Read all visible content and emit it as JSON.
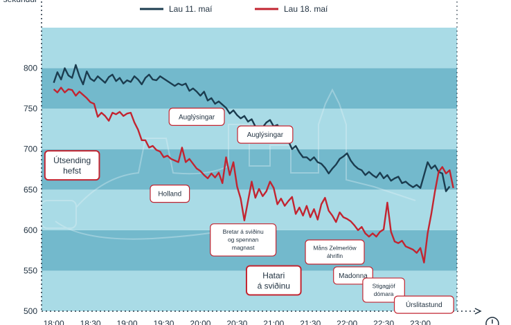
{
  "chart_data": {
    "type": "line",
    "ylabel": "sekúndur",
    "ylim": [
      500,
      850
    ],
    "yticks": [
      "500",
      "550",
      "600",
      "650",
      "700",
      "750",
      "800"
    ],
    "xticks": [
      "18:00",
      "18:30",
      "19:00",
      "19:30",
      "20:00",
      "20:30",
      "21:00",
      "21:30",
      "22:00",
      "22:30",
      "23:00"
    ],
    "xtick_values": [
      0,
      30,
      60,
      90,
      120,
      150,
      180,
      210,
      240,
      270,
      300
    ],
    "xlim": [
      -10,
      330
    ],
    "grid": false,
    "legend_placement": "top",
    "colors": {
      "series1": "#1b3c4f",
      "series2": "#c22430",
      "band_light": "#a9dbe6",
      "band_dark": "#73b9cc",
      "axis": "#1e2f3e"
    },
    "series": [
      {
        "name": "Lau 11. maí",
        "points": [
          [
            0,
            782
          ],
          [
            3,
            795
          ],
          [
            6,
            786
          ],
          [
            9,
            800
          ],
          [
            12,
            791
          ],
          [
            15,
            788
          ],
          [
            18,
            804
          ],
          [
            21,
            790
          ],
          [
            24,
            780
          ],
          [
            27,
            796
          ],
          [
            30,
            787
          ],
          [
            33,
            784
          ],
          [
            36,
            790
          ],
          [
            39,
            786
          ],
          [
            42,
            782
          ],
          [
            45,
            789
          ],
          [
            48,
            792
          ],
          [
            51,
            784
          ],
          [
            54,
            788
          ],
          [
            57,
            781
          ],
          [
            60,
            785
          ],
          [
            63,
            783
          ],
          [
            66,
            790
          ],
          [
            69,
            786
          ],
          [
            72,
            780
          ],
          [
            75,
            788
          ],
          [
            78,
            792
          ],
          [
            81,
            786
          ],
          [
            84,
            785
          ],
          [
            87,
            790
          ],
          [
            90,
            787
          ],
          [
            93,
            784
          ],
          [
            96,
            781
          ],
          [
            99,
            778
          ],
          [
            102,
            781
          ],
          [
            105,
            779
          ],
          [
            108,
            781
          ],
          [
            111,
            772
          ],
          [
            114,
            775
          ],
          [
            117,
            771
          ],
          [
            120,
            766
          ],
          [
            123,
            771
          ],
          [
            126,
            760
          ],
          [
            129,
            763
          ],
          [
            132,
            756
          ],
          [
            135,
            759
          ],
          [
            138,
            755
          ],
          [
            141,
            751
          ],
          [
            144,
            744
          ],
          [
            147,
            748
          ],
          [
            150,
            742
          ],
          [
            153,
            738
          ],
          [
            156,
            741
          ],
          [
            159,
            734
          ],
          [
            162,
            737
          ],
          [
            165,
            728
          ],
          [
            168,
            724
          ],
          [
            171,
            727
          ],
          [
            174,
            733
          ],
          [
            177,
            736
          ],
          [
            180,
            728
          ],
          [
            183,
            730
          ],
          [
            186,
            722
          ],
          [
            189,
            713
          ],
          [
            192,
            710
          ],
          [
            195,
            700
          ],
          [
            198,
            704
          ],
          [
            201,
            696
          ],
          [
            204,
            690
          ],
          [
            207,
            690
          ],
          [
            210,
            686
          ],
          [
            213,
            690
          ],
          [
            216,
            684
          ],
          [
            219,
            682
          ],
          [
            222,
            677
          ],
          [
            225,
            670
          ],
          [
            228,
            676
          ],
          [
            231,
            681
          ],
          [
            234,
            688
          ],
          [
            237,
            691
          ],
          [
            240,
            695
          ],
          [
            243,
            686
          ],
          [
            246,
            680
          ],
          [
            249,
            676
          ],
          [
            252,
            674
          ],
          [
            255,
            668
          ],
          [
            258,
            672
          ],
          [
            261,
            668
          ],
          [
            264,
            665
          ],
          [
            267,
            671
          ],
          [
            270,
            664
          ],
          [
            273,
            668
          ],
          [
            276,
            661
          ],
          [
            279,
            664
          ],
          [
            282,
            666
          ],
          [
            285,
            658
          ],
          [
            288,
            660
          ],
          [
            291,
            656
          ],
          [
            294,
            653
          ],
          [
            297,
            656
          ],
          [
            300,
            652
          ],
          [
            303,
            668
          ],
          [
            306,
            684
          ],
          [
            309,
            676
          ],
          [
            312,
            680
          ],
          [
            315,
            672
          ],
          [
            318,
            670
          ],
          [
            321,
            648
          ],
          [
            324,
            654
          ]
        ]
      },
      {
        "name": "Lau 18. maí",
        "points": [
          [
            0,
            774
          ],
          [
            3,
            770
          ],
          [
            6,
            776
          ],
          [
            9,
            770
          ],
          [
            12,
            774
          ],
          [
            15,
            773
          ],
          [
            18,
            766
          ],
          [
            21,
            771
          ],
          [
            24,
            767
          ],
          [
            27,
            763
          ],
          [
            30,
            758
          ],
          [
            33,
            756
          ],
          [
            36,
            740
          ],
          [
            39,
            745
          ],
          [
            42,
            741
          ],
          [
            45,
            735
          ],
          [
            48,
            745
          ],
          [
            51,
            743
          ],
          [
            54,
            746
          ],
          [
            57,
            741
          ],
          [
            60,
            744
          ],
          [
            63,
            745
          ],
          [
            66,
            733
          ],
          [
            69,
            724
          ],
          [
            72,
            711
          ],
          [
            75,
            711
          ],
          [
            78,
            702
          ],
          [
            81,
            704
          ],
          [
            84,
            699
          ],
          [
            87,
            697
          ],
          [
            90,
            690
          ],
          [
            93,
            692
          ],
          [
            96,
            688
          ],
          [
            99,
            686
          ],
          [
            102,
            684
          ],
          [
            105,
            702
          ],
          [
            108,
            684
          ],
          [
            111,
            688
          ],
          [
            114,
            682
          ],
          [
            117,
            676
          ],
          [
            120,
            673
          ],
          [
            123,
            668
          ],
          [
            126,
            664
          ],
          [
            129,
            670
          ],
          [
            132,
            665
          ],
          [
            135,
            671
          ],
          [
            138,
            658
          ],
          [
            141,
            690
          ],
          [
            144,
            668
          ],
          [
            147,
            684
          ],
          [
            150,
            654
          ],
          [
            153,
            639
          ],
          [
            156,
            612
          ],
          [
            159,
            636
          ],
          [
            162,
            660
          ],
          [
            165,
            640
          ],
          [
            168,
            651
          ],
          [
            171,
            642
          ],
          [
            174,
            648
          ],
          [
            177,
            660
          ],
          [
            180,
            652
          ],
          [
            183,
            632
          ],
          [
            186,
            639
          ],
          [
            189,
            630
          ],
          [
            192,
            636
          ],
          [
            195,
            641
          ],
          [
            198,
            620
          ],
          [
            201,
            628
          ],
          [
            204,
            618
          ],
          [
            207,
            630
          ],
          [
            210,
            616
          ],
          [
            213,
            626
          ],
          [
            216,
            613
          ],
          [
            219,
            632
          ],
          [
            222,
            640
          ],
          [
            225,
            624
          ],
          [
            228,
            618
          ],
          [
            231,
            610
          ],
          [
            234,
            622
          ],
          [
            237,
            616
          ],
          [
            240,
            614
          ],
          [
            243,
            611
          ],
          [
            246,
            606
          ],
          [
            249,
            600
          ],
          [
            252,
            604
          ],
          [
            255,
            596
          ],
          [
            258,
            592
          ],
          [
            261,
            596
          ],
          [
            264,
            592
          ],
          [
            267,
            598
          ],
          [
            270,
            601
          ],
          [
            273,
            634
          ],
          [
            276,
            598
          ],
          [
            279,
            586
          ],
          [
            282,
            584
          ],
          [
            285,
            587
          ],
          [
            288,
            580
          ],
          [
            291,
            578
          ],
          [
            294,
            576
          ],
          [
            297,
            572
          ],
          [
            300,
            578
          ],
          [
            303,
            560
          ],
          [
            306,
            596
          ],
          [
            309,
            620
          ],
          [
            312,
            648
          ],
          [
            315,
            672
          ],
          [
            318,
            678
          ],
          [
            321,
            670
          ],
          [
            324,
            674
          ],
          [
            327,
            652
          ]
        ]
      }
    ],
    "annotations": [
      {
        "text": "Útsending\nhefst",
        "x": 15,
        "y": 680
      },
      {
        "text": "Auglýsingar",
        "x": 117,
        "y": 740
      },
      {
        "text": "Auglýsingar",
        "x": 173,
        "y": 718
      },
      {
        "text": "Holland",
        "x": 95,
        "y": 645
      },
      {
        "text": "Bretar á sviðinu\nog spennan\nmagnast",
        "x": 155,
        "y": 588
      },
      {
        "text": "Hatari\ná sviðinu",
        "x": 180,
        "y": 538
      },
      {
        "text": "Måns Zelmerlöw\náhrifin",
        "x": 230,
        "y": 573
      },
      {
        "text": "Madonna",
        "x": 245,
        "y": 544
      },
      {
        "text": "Stigagjöf\ndómara",
        "x": 270,
        "y": 526
      },
      {
        "text": "Úrslitastund",
        "x": 303,
        "y": 508
      }
    ]
  }
}
